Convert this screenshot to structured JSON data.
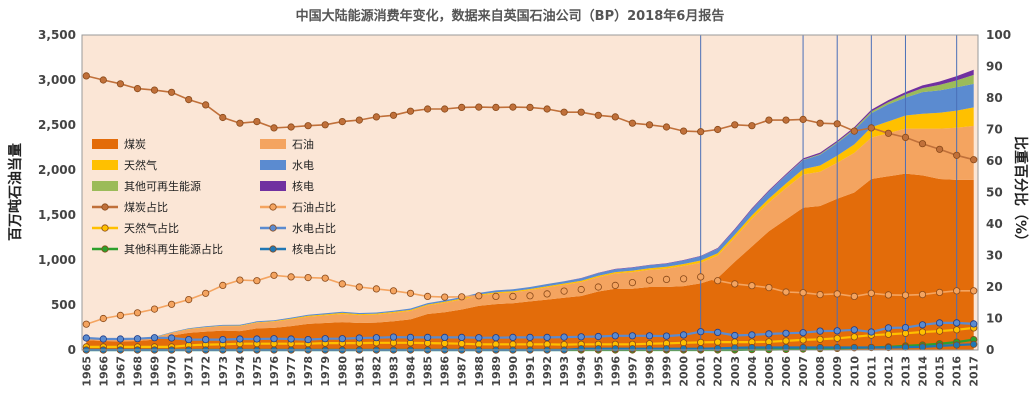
{
  "chart_data": {
    "type": "area",
    "title": "中国大陆能源消费年变化，数据来自英国石油公司（BP）2018年6月报告",
    "ylabel_left": "百万吨石油当量",
    "ylabel_right": "比重百分比（%）",
    "left_axis": {
      "ylim": [
        0,
        3500
      ],
      "ticks": [
        "0",
        "500",
        "1,000",
        "1,500",
        "2,000",
        "2,500",
        "3,000",
        "3,500"
      ]
    },
    "right_axis": {
      "ylim": [
        0,
        100
      ],
      "ticks": [
        "0",
        "10",
        "20",
        "30",
        "40",
        "50",
        "60",
        "70",
        "80",
        "90",
        "100"
      ]
    },
    "x": [
      1965,
      1966,
      1967,
      1968,
      1969,
      1970,
      1971,
      1972,
      1973,
      1974,
      1975,
      1976,
      1977,
      1978,
      1979,
      1980,
      1981,
      1982,
      1983,
      1984,
      1985,
      1986,
      1987,
      1988,
      1989,
      1990,
      1991,
      1992,
      1993,
      1994,
      1995,
      1996,
      1997,
      1998,
      1999,
      2000,
      2001,
      2002,
      2003,
      2004,
      2005,
      2006,
      2007,
      2008,
      2009,
      2010,
      2011,
      2012,
      2013,
      2014,
      2015,
      2016,
      2017
    ],
    "vertical_markers": [
      2001,
      2007,
      2009,
      2011,
      2013,
      2016
    ],
    "area_series": [
      {
        "name": "煤炭",
        "color": "#e36c0a",
        "values": [
          110,
          100,
          95,
          100,
          115,
          160,
          190,
          205,
          215,
          210,
          240,
          245,
          265,
          290,
          300,
          310,
          300,
          305,
          320,
          340,
          400,
          420,
          450,
          490,
          510,
          520,
          540,
          560,
          580,
          600,
          650,
          680,
          680,
          700,
          700,
          710,
          740,
          800,
          980,
          1150,
          1320,
          1450,
          1580,
          1600,
          1680,
          1750,
          1900,
          1930,
          1960,
          1940,
          1900,
          1890,
          1890
        ]
      },
      {
        "name": "石油",
        "color": "#f4a460",
        "values": [
          12,
          15,
          15,
          18,
          22,
          30,
          40,
          45,
          50,
          55,
          62,
          68,
          75,
          80,
          85,
          90,
          88,
          88,
          92,
          95,
          95,
          105,
          110,
          115,
          120,
          120,
          125,
          135,
          145,
          155,
          160,
          170,
          185,
          190,
          205,
          225,
          230,
          250,
          270,
          310,
          320,
          350,
          370,
          380,
          400,
          440,
          460,
          480,
          500,
          520,
          560,
          580,
          600
        ]
      },
      {
        "name": "天然气",
        "color": "#ffc000",
        "values": [
          2,
          2,
          2,
          2,
          3,
          3,
          4,
          5,
          5,
          6,
          7,
          8,
          9,
          10,
          11,
          12,
          11,
          11,
          11,
          11,
          11,
          12,
          12,
          12,
          12,
          13,
          13,
          14,
          14,
          15,
          16,
          16,
          17,
          18,
          19,
          21,
          24,
          26,
          30,
          35,
          42,
          50,
          60,
          70,
          80,
          95,
          115,
          130,
          145,
          165,
          175,
          190,
          205
        ]
      },
      {
        "name": "水电",
        "color": "#5b8bd0",
        "values": [
          5,
          5,
          5,
          5,
          6,
          6,
          7,
          8,
          9,
          9,
          10,
          10,
          11,
          12,
          12,
          12,
          12,
          13,
          14,
          15,
          15,
          16,
          17,
          18,
          20,
          21,
          22,
          24,
          25,
          27,
          30,
          32,
          34,
          35,
          36,
          39,
          47,
          50,
          55,
          67,
          80,
          90,
          100,
          120,
          140,
          160,
          155,
          190,
          200,
          240,
          250,
          260,
          262
        ]
      },
      {
        "name": "其他可再生能源",
        "color": "#9bbb59",
        "values": [
          0,
          0,
          0,
          0,
          0,
          0,
          0,
          0,
          0,
          0,
          0,
          0,
          0,
          0,
          0,
          0,
          0,
          0,
          0,
          0,
          0,
          0,
          0,
          0,
          0,
          0,
          0,
          0,
          0,
          0,
          0,
          0,
          0,
          0,
          0,
          1,
          1,
          1,
          1,
          1,
          2,
          3,
          5,
          8,
          10,
          15,
          20,
          25,
          35,
          45,
          60,
          75,
          100
        ]
      },
      {
        "name": "核电",
        "color": "#7030a0",
        "values": [
          0,
          0,
          0,
          0,
          0,
          0,
          0,
          0,
          0,
          0,
          0,
          0,
          0,
          0,
          0,
          0,
          0,
          0,
          0,
          0,
          0,
          0,
          0,
          0,
          0,
          0,
          0,
          0,
          0,
          3,
          3,
          3,
          3,
          3,
          3,
          4,
          4,
          6,
          9,
          11,
          12,
          13,
          14,
          15,
          16,
          17,
          20,
          22,
          25,
          30,
          38,
          48,
          56
        ]
      }
    ],
    "line_series": [
      {
        "name": "煤炭占比",
        "color": "#c0703a",
        "values": [
          87,
          85.7,
          84.5,
          83,
          82.5,
          81.8,
          79.5,
          77.8,
          73.8,
          72,
          72.5,
          70.5,
          70.8,
          71.2,
          71.5,
          72.5,
          73,
          74,
          74.5,
          75.8,
          76.5,
          76.5,
          77,
          77.1,
          77,
          77.1,
          77,
          76.5,
          75.5,
          75.5,
          74.5,
          74,
          72,
          71.5,
          70.8,
          69.5,
          69.3,
          70,
          71.5,
          71.2,
          73,
          73,
          73.2,
          72,
          71.8,
          69.5,
          70.5,
          68.8,
          67.5,
          65.5,
          63.7,
          61.8,
          60.4
        ]
      },
      {
        "name": "石油占比",
        "color": "#f4a460",
        "values": [
          8.2,
          10,
          11,
          11.8,
          13,
          14.5,
          16,
          18,
          20.5,
          22.2,
          22,
          23.7,
          23.2,
          23,
          22.8,
          21,
          20,
          19.4,
          18.8,
          18,
          17,
          16.8,
          16.9,
          17.2,
          17,
          17,
          17.2,
          17.8,
          18.7,
          19.2,
          20,
          20.5,
          21.4,
          22.2,
          22.4,
          22.6,
          23.2,
          22,
          21,
          20.4,
          19.8,
          18.4,
          18.2,
          17.6,
          17.8,
          17,
          18,
          17.5,
          17.4,
          17.6,
          18.3,
          18.8,
          18.8
        ]
      },
      {
        "name": "天然气占比",
        "color": "#ffc000",
        "values": [
          1,
          1,
          1,
          1,
          1,
          1,
          1.5,
          1.7,
          1.8,
          2,
          2,
          2,
          2,
          2,
          2.2,
          2.2,
          2.2,
          2.3,
          2.3,
          2.3,
          2.2,
          2.1,
          2,
          1.8,
          1.8,
          1.8,
          1.8,
          1.8,
          1.7,
          1.8,
          1.8,
          1.8,
          1.8,
          2,
          2.1,
          2.3,
          2.4,
          2.5,
          2.5,
          2.5,
          2.6,
          2.9,
          3.2,
          3.4,
          3.7,
          4.2,
          4.7,
          5,
          5.3,
          5.7,
          6,
          6.4,
          7.0
        ]
      },
      {
        "name": "水电占比",
        "color": "#5b8bd0",
        "values": [
          3.8,
          3.5,
          3.5,
          3.6,
          3.9,
          3.8,
          3.3,
          3.3,
          3.3,
          3.5,
          3.5,
          3.6,
          3.5,
          3.3,
          3.6,
          3.6,
          3.8,
          3.9,
          4.1,
          4.0,
          4.0,
          4.0,
          4.0,
          3.9,
          3.9,
          4.0,
          4.0,
          4.0,
          4.1,
          4.2,
          4.3,
          4.5,
          4.5,
          4.5,
          4.4,
          4.8,
          5.8,
          5.6,
          4.6,
          4.8,
          5.1,
          5.3,
          5.5,
          6.0,
          6.1,
          6.4,
          5.7,
          7.0,
          7.1,
          8.0,
          8.6,
          8.6,
          8.3
        ]
      },
      {
        "name": "其他科再生能源占比",
        "color": "#2ca02c",
        "values": [
          0,
          0,
          0,
          0,
          0,
          0,
          0,
          0,
          0,
          0,
          0,
          0,
          0,
          0,
          0,
          0,
          0,
          0,
          0,
          0,
          0,
          0,
          0,
          0,
          0,
          0,
          0,
          0,
          0,
          0,
          0,
          0,
          0,
          0,
          0,
          0,
          0,
          0,
          0,
          0.1,
          0.1,
          0.2,
          0.3,
          0.4,
          0.5,
          0.7,
          0.8,
          1.0,
          1.3,
          1.6,
          2.0,
          2.5,
          3.3
        ]
      },
      {
        "name": "核电占比",
        "color": "#1f77b4",
        "values": [
          0,
          0,
          0,
          0,
          0,
          0,
          0,
          0,
          0,
          0,
          0,
          0,
          0,
          0,
          0,
          0,
          0,
          0,
          0,
          0,
          0,
          0,
          0,
          0,
          0,
          0,
          0,
          0,
          0,
          0.4,
          0.4,
          0.4,
          0.4,
          0.4,
          0.4,
          0.4,
          0.4,
          0.5,
          0.7,
          0.8,
          0.8,
          0.8,
          0.8,
          0.8,
          0.8,
          0.8,
          0.8,
          0.8,
          0.9,
          1.0,
          1.3,
          1.6,
          1.8
        ]
      }
    ]
  }
}
